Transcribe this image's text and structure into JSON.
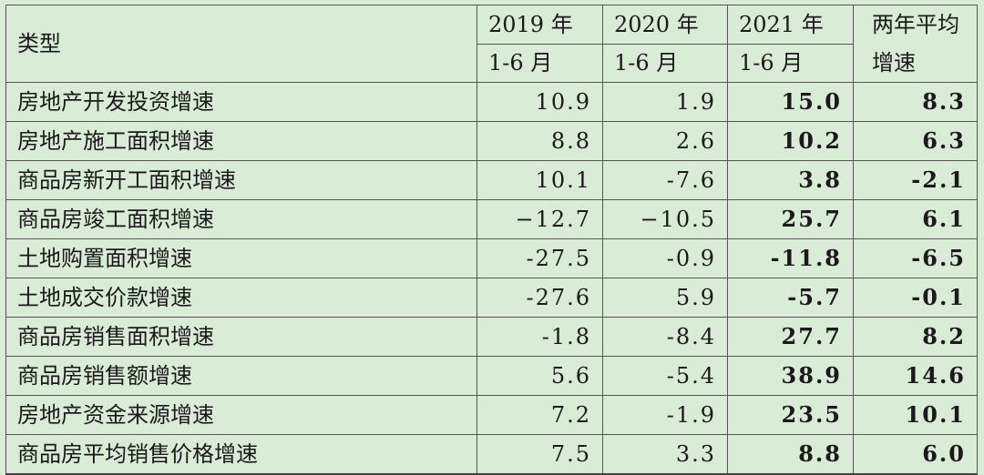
{
  "header": {
    "type_label": "类型",
    "col_2019_year": "2019 年",
    "col_2020_year": "2020 年",
    "col_2021_year": "2021 年",
    "col_period": "1-6 月",
    "col_avg_line1": "两年平均",
    "col_avg_line2": "增速"
  },
  "rows": [
    {
      "label": "房地产开发投资增速",
      "v2019": "10.9",
      "v2020": "1.9",
      "v2021": "15.0",
      "avg": "8.3"
    },
    {
      "label": "房地产施工面积增速",
      "v2019": "8.8",
      "v2020": "2.6",
      "v2021": "10.2",
      "avg": "6.3"
    },
    {
      "label": "商品房新开工面积增速",
      "v2019": "10.1",
      "v2020": "-7.6",
      "v2021": "3.8",
      "avg": "-2.1"
    },
    {
      "label": "商品房竣工面积增速",
      "v2019": "−12.7",
      "v2020": "−10.5",
      "v2021": "25.7",
      "avg": "6.1"
    },
    {
      "label": "土地购置面积增速",
      "v2019": "-27.5",
      "v2020": "-0.9",
      "v2021": "-11.8",
      "avg": "-6.5"
    },
    {
      "label": "土地成交价款增速",
      "v2019": "-27.6",
      "v2020": "5.9",
      "v2021": "-5.7",
      "avg": "-0.1"
    },
    {
      "label": "商品房销售面积增速",
      "v2019": "-1.8",
      "v2020": "-8.4",
      "v2021": "27.7",
      "avg": "8.2"
    },
    {
      "label": "商品房销售额增速",
      "v2019": "5.6",
      "v2020": "-5.4",
      "v2021": "38.9",
      "avg": "14.6"
    },
    {
      "label": "房地产资金来源增速",
      "v2019": "7.2",
      "v2020": "-1.9",
      "v2021": "23.5",
      "avg": "10.1"
    },
    {
      "label": "商品房平均销售价格增速",
      "v2019": "7.5",
      "v2020": "3.3",
      "v2021": "8.8",
      "avg": "6.0"
    }
  ]
}
